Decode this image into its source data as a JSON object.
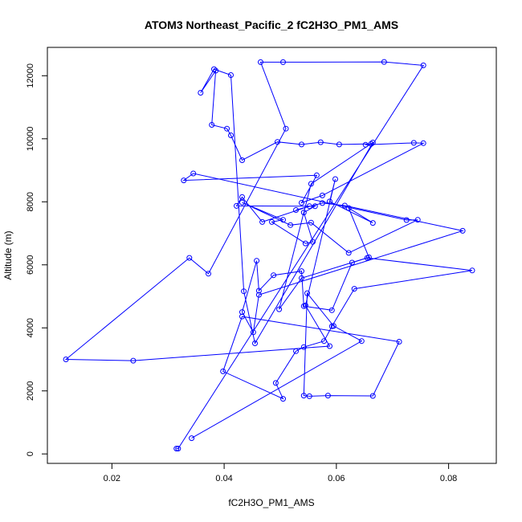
{
  "chart_data": {
    "type": "line",
    "title": "ATOM3 Northeast_Pacific_2 fC2H3O_PM1_AMS",
    "xlabel": "fC2H3O_PM1_AMS",
    "ylabel": "Altitude (m)",
    "xlim": [
      0.0085,
      0.0885
    ],
    "ylim": [
      -300,
      12900
    ],
    "xticks": [
      0.02,
      0.04,
      0.06,
      0.08
    ],
    "xtick_labels": [
      "0.02",
      "0.04",
      "0.06",
      "0.08"
    ],
    "yticks": [
      0,
      2000,
      4000,
      6000,
      8000,
      10000,
      12000
    ],
    "ytick_labels": [
      "0",
      "2000",
      "4000",
      "6000",
      "8000",
      "10000",
      "12000"
    ],
    "grid": false,
    "line_color": "#0000ff",
    "series": [
      {
        "x": [
          0.0315,
          0.0318,
          0.0755,
          0.0685,
          0.0505,
          0.0465,
          0.051,
          0.0372,
          0.0338,
          0.0118,
          0.0238,
          0.0588,
          0.0545,
          0.0598,
          0.0588,
          0.0665,
          0.0622,
          0.0658,
          0.0538,
          0.0498,
          0.0555,
          0.0665,
          0.0455,
          0.0435,
          0.0412,
          0.0382,
          0.0358,
          0.0385,
          0.0378,
          0.0405,
          0.0412,
          0.0432,
          0.0495,
          0.0538,
          0.0572,
          0.0605,
          0.0662,
          0.0652,
          0.0738,
          0.0755,
          0.0575,
          0.0538,
          0.0565,
          0.0328,
          0.0345,
          0.0725,
          0.0745,
          0.0622,
          0.0555,
          0.0518,
          0.0432,
          0.0505,
          0.0485,
          0.0545,
          0.0558,
          0.0542,
          0.0562,
          0.0422,
          0.0432,
          0.0468,
          0.0552,
          0.0528,
          0.0575,
          0.0615,
          0.0825,
          0.0462,
          0.0452,
          0.0432,
          0.0458,
          0.0462,
          0.0488,
          0.0538,
          0.0542,
          0.0592,
          0.0628,
          0.0655,
          0.0842,
          0.0632,
          0.0592,
          0.0578,
          0.0542,
          0.0528,
          0.0492,
          0.0505,
          0.0398,
          0.0432,
          0.0712,
          0.0665,
          0.0585,
          0.0552,
          0.0542,
          0.0548,
          0.0595,
          0.0645,
          0.0342
        ],
        "y": [
          170,
          170,
          12330,
          12440,
          12430,
          12430,
          10320,
          5720,
          6220,
          3000,
          2960,
          3420,
          4710,
          8720,
          8010,
          7330,
          7800,
          6240,
          5580,
          4590,
          8570,
          9880,
          3510,
          5160,
          12020,
          12210,
          11460,
          12160,
          10440,
          10320,
          10110,
          9320,
          9900,
          9820,
          9890,
          9820,
          9840,
          9810,
          9870,
          9860,
          8200,
          7970,
          8840,
          8680,
          8900,
          7420,
          7430,
          6380,
          7340,
          7260,
          7980,
          7430,
          7360,
          6680,
          6730,
          7660,
          7860,
          7870,
          8150,
          7360,
          7860,
          7740,
          7960,
          7880,
          7080,
          5050,
          3860,
          4500,
          6130,
          5180,
          5670,
          5800,
          4690,
          4560,
          6070,
          6220,
          5820,
          5240,
          4050,
          3580,
          3390,
          3260,
          2250,
          1750,
          2620,
          4360,
          3560,
          1840,
          1850,
          1830,
          1850,
          5100,
          4060,
          3580,
          500
        ]
      }
    ]
  }
}
